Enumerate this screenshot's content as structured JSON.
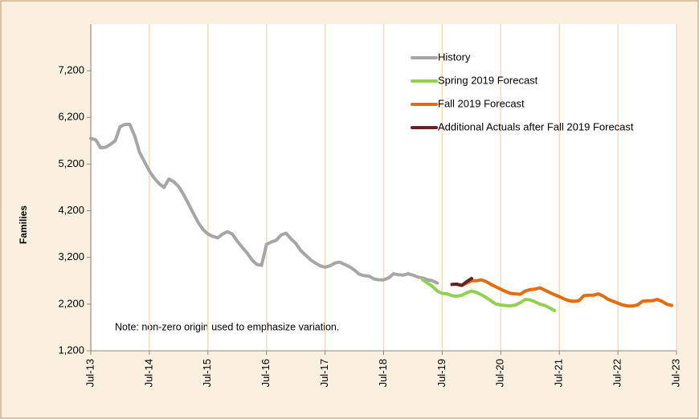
{
  "chart_data": {
    "type": "line",
    "y_label": "Families",
    "note": "Note: non-zero origin used to emphasize variation.",
    "ylim": [
      1200,
      8200
    ],
    "yticks": [
      {
        "value": 1200,
        "label": "1,200"
      },
      {
        "value": 2200,
        "label": "2,200"
      },
      {
        "value": 3200,
        "label": "3,200"
      },
      {
        "value": 4200,
        "label": "4,200"
      },
      {
        "value": 5200,
        "label": "5,200"
      },
      {
        "value": 6200,
        "label": "6,200"
      },
      {
        "value": 7200,
        "label": "7,200"
      }
    ],
    "xlim": [
      "2013-07",
      "2023-07"
    ],
    "xticks": [
      {
        "value": "2013-07",
        "label": "Jul-13"
      },
      {
        "value": "2014-07",
        "label": "Jul-14"
      },
      {
        "value": "2015-07",
        "label": "Jul-15"
      },
      {
        "value": "2016-07",
        "label": "Jul-16"
      },
      {
        "value": "2017-07",
        "label": "Jul-17"
      },
      {
        "value": "2018-07",
        "label": "Jul-18"
      },
      {
        "value": "2019-07",
        "label": "Jul-19"
      },
      {
        "value": "2020-07",
        "label": "Jul-20"
      },
      {
        "value": "2021-07",
        "label": "Jul-21"
      },
      {
        "value": "2022-07",
        "label": "Jul-22"
      },
      {
        "value": "2023-07",
        "label": "Jul-23"
      }
    ],
    "grid": "x",
    "legend": "top-right",
    "series": [
      {
        "name": "History",
        "color": "#a6a6a6",
        "x": [
          "2013-07",
          "2013-08",
          "2013-09",
          "2013-10",
          "2013-11",
          "2013-12",
          "2014-01",
          "2014-02",
          "2014-03",
          "2014-04",
          "2014-05",
          "2014-06",
          "2014-07",
          "2014-08",
          "2014-09",
          "2014-10",
          "2014-11",
          "2014-12",
          "2015-01",
          "2015-02",
          "2015-03",
          "2015-04",
          "2015-05",
          "2015-06",
          "2015-07",
          "2015-08",
          "2015-09",
          "2015-10",
          "2015-11",
          "2015-12",
          "2016-01",
          "2016-02",
          "2016-03",
          "2016-04",
          "2016-05",
          "2016-06",
          "2016-07",
          "2016-08",
          "2016-09",
          "2016-10",
          "2016-11",
          "2016-12",
          "2017-01",
          "2017-02",
          "2017-03",
          "2017-04",
          "2017-05",
          "2017-06",
          "2017-07",
          "2017-08",
          "2017-09",
          "2017-10",
          "2017-11",
          "2017-12",
          "2018-01",
          "2018-02",
          "2018-03",
          "2018-04",
          "2018-05",
          "2018-06",
          "2018-07",
          "2018-08",
          "2018-09",
          "2018-10",
          "2018-11",
          "2018-12",
          "2019-01",
          "2019-02",
          "2019-03",
          "2019-04",
          "2019-05",
          "2019-06"
        ],
        "values": [
          5750,
          5720,
          5550,
          5560,
          5620,
          5700,
          6000,
          6050,
          6050,
          5800,
          5450,
          5250,
          5050,
          4900,
          4780,
          4700,
          4880,
          4820,
          4720,
          4550,
          4350,
          4150,
          3950,
          3800,
          3700,
          3650,
          3620,
          3700,
          3750,
          3700,
          3550,
          3420,
          3300,
          3150,
          3050,
          3030,
          3480,
          3530,
          3570,
          3680,
          3720,
          3600,
          3500,
          3350,
          3250,
          3150,
          3080,
          3020,
          2990,
          3020,
          3080,
          3100,
          3050,
          3000,
          2930,
          2840,
          2810,
          2800,
          2740,
          2720,
          2720,
          2760,
          2850,
          2830,
          2820,
          2850,
          2820,
          2780,
          2760,
          2720,
          2700,
          2650
        ]
      },
      {
        "name": "Spring 2019 Forecast",
        "color": "#92d050",
        "x": [
          "2019-03",
          "2019-04",
          "2019-05",
          "2019-06",
          "2019-07",
          "2019-08",
          "2019-09",
          "2019-10",
          "2019-11",
          "2019-12",
          "2020-01",
          "2020-02",
          "2020-03",
          "2020-04",
          "2020-05",
          "2020-06",
          "2020-07",
          "2020-08",
          "2020-09",
          "2020-10",
          "2020-11",
          "2020-12",
          "2021-01",
          "2021-02",
          "2021-03",
          "2021-04",
          "2021-05",
          "2021-06"
        ],
        "values": [
          2720,
          2650,
          2580,
          2480,
          2430,
          2420,
          2380,
          2370,
          2390,
          2440,
          2480,
          2450,
          2400,
          2340,
          2270,
          2200,
          2180,
          2170,
          2160,
          2180,
          2230,
          2300,
          2290,
          2250,
          2200,
          2170,
          2120,
          2060
        ]
      },
      {
        "name": "Fall 2019 Forecast",
        "color": "#e46c0a",
        "x": [
          "2019-10",
          "2019-11",
          "2019-12",
          "2020-01",
          "2020-02",
          "2020-03",
          "2020-04",
          "2020-05",
          "2020-06",
          "2020-07",
          "2020-08",
          "2020-09",
          "2020-10",
          "2020-11",
          "2020-12",
          "2021-01",
          "2021-02",
          "2021-03",
          "2021-04",
          "2021-05",
          "2021-06",
          "2021-07",
          "2021-08",
          "2021-09",
          "2021-10",
          "2021-11",
          "2021-12",
          "2022-01",
          "2022-02",
          "2022-03",
          "2022-04",
          "2022-05",
          "2022-06",
          "2022-07",
          "2022-08",
          "2022-09",
          "2022-10",
          "2022-11",
          "2022-12",
          "2023-01",
          "2023-02",
          "2023-03",
          "2023-04",
          "2023-05",
          "2023-06"
        ],
        "values": [
          2620,
          2600,
          2650,
          2700,
          2700,
          2720,
          2680,
          2620,
          2570,
          2520,
          2470,
          2430,
          2420,
          2410,
          2480,
          2510,
          2520,
          2550,
          2500,
          2450,
          2400,
          2360,
          2310,
          2270,
          2260,
          2270,
          2380,
          2390,
          2390,
          2420,
          2370,
          2300,
          2260,
          2220,
          2180,
          2160,
          2160,
          2180,
          2260,
          2270,
          2270,
          2300,
          2260,
          2200,
          2170
        ]
      },
      {
        "name": "Additional Actuals after Fall 2019 Forecast",
        "color": "#632423",
        "x": [
          "2019-09",
          "2019-10",
          "2019-11",
          "2019-12",
          "2020-01"
        ],
        "values": [
          2620,
          2630,
          2600,
          2680,
          2750
        ]
      }
    ]
  }
}
